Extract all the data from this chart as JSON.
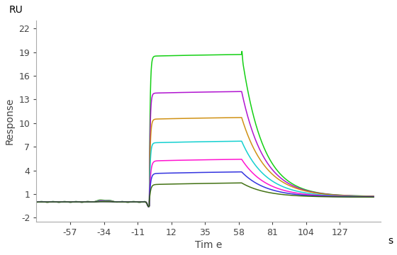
{
  "title": "",
  "xlabel": "Tim e",
  "xlabel_s": "s",
  "ylabel": "Response",
  "ru_label": "RU",
  "xlim": [
    -80,
    155
  ],
  "ylim": [
    -2.5,
    23
  ],
  "xticks": [
    -57,
    -34,
    -11,
    12,
    35,
    58,
    81,
    104,
    127
  ],
  "yticks": [
    -2,
    1,
    4,
    7,
    10,
    13,
    16,
    19,
    22
  ],
  "assoc_start": -3,
  "assoc_end": 60,
  "dissoc_end": 127,
  "baseline_level": 0.0,
  "baseline_noise_x": -34,
  "baseline_noise_amp": 0.25,
  "dip_depth": -0.6,
  "dip_time": -3.5,
  "curves": [
    {
      "color": "#00cc00",
      "plateau": 18.5,
      "spike": 20.8,
      "dissoc_final": 0.7,
      "kon": 1.8,
      "koff": 0.07,
      "rise_time": 2.5
    },
    {
      "color": "#aa00cc",
      "plateau": 13.8,
      "spike": 14.0,
      "dissoc_final": 0.68,
      "kon": 1.8,
      "koff": 0.065,
      "rise_time": 2.5
    },
    {
      "color": "#cc8800",
      "plateau": 10.5,
      "spike": 10.6,
      "dissoc_final": 0.65,
      "kon": 1.6,
      "koff": 0.06,
      "rise_time": 2.5
    },
    {
      "color": "#00cccc",
      "plateau": 7.5,
      "spike": 7.6,
      "dissoc_final": 0.63,
      "kon": 1.6,
      "koff": 0.06,
      "rise_time": 2.5
    },
    {
      "color": "#ff00cc",
      "plateau": 5.2,
      "spike": 5.3,
      "dissoc_final": 0.62,
      "kon": 1.2,
      "koff": 0.06,
      "rise_time": 3.0
    },
    {
      "color": "#2222dd",
      "plateau": 3.6,
      "spike": 3.7,
      "dissoc_final": 0.61,
      "kon": 1.2,
      "koff": 0.06,
      "rise_time": 3.0
    },
    {
      "color": "#336600",
      "plateau": 2.2,
      "spike": 2.25,
      "dissoc_final": 0.6,
      "kon": 1.2,
      "koff": 0.06,
      "rise_time": 3.0
    }
  ],
  "background_color": "#ffffff",
  "axis_color": "#aaaaaa",
  "tick_color": "#444444",
  "label_fontsize": 10,
  "tick_fontsize": 9,
  "ru_fontsize": 10
}
